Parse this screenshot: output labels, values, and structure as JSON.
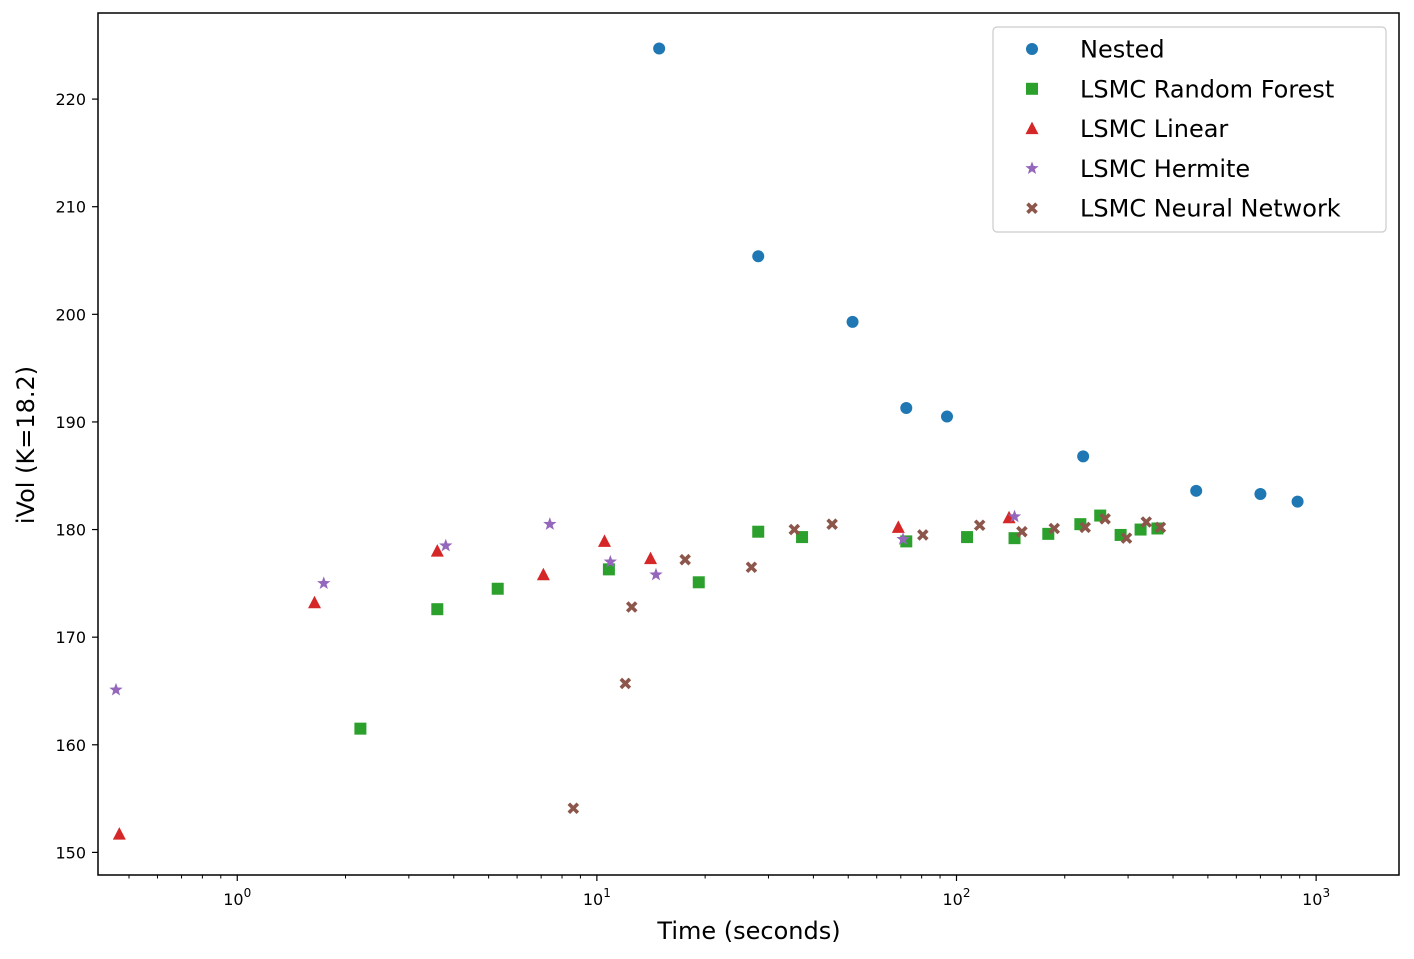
{
  "chart_data": {
    "type": "scatter",
    "title": "",
    "xlabel": "Time (seconds)",
    "ylabel": "iVol (K=18.2)",
    "xscale": "log",
    "xlim": [
      0.41,
      1700
    ],
    "ylim": [
      147.9,
      228.0
    ],
    "xticks": [
      {
        "value": 1,
        "base": "10",
        "exp": "0"
      },
      {
        "value": 10,
        "base": "10",
        "exp": "1"
      },
      {
        "value": 100,
        "base": "10",
        "exp": "2"
      },
      {
        "value": 1000,
        "base": "10",
        "exp": "3"
      }
    ],
    "yticks": [
      150,
      160,
      170,
      180,
      190,
      200,
      210,
      220
    ],
    "grid": false,
    "legend_position": "top-right",
    "series": [
      {
        "name": "Nested",
        "marker": "circle",
        "color": "#1f77b4",
        "points": [
          [
            14.9,
            224.7
          ],
          [
            28.1,
            205.4
          ],
          [
            51.4,
            199.3
          ],
          [
            72.5,
            191.3
          ],
          [
            94.1,
            190.5
          ],
          [
            225,
            186.8
          ],
          [
            464,
            183.6
          ],
          [
            700,
            183.3
          ],
          [
            888,
            182.6
          ]
        ]
      },
      {
        "name": "LSMC Random Forest",
        "marker": "square",
        "color": "#2ca02c",
        "points": [
          [
            2.2,
            161.5
          ],
          [
            3.6,
            172.6
          ],
          [
            5.3,
            174.5
          ],
          [
            10.8,
            176.3
          ],
          [
            19.2,
            175.1
          ],
          [
            28.1,
            179.8
          ],
          [
            37.2,
            179.3
          ],
          [
            72.5,
            178.9
          ],
          [
            107,
            179.3
          ],
          [
            145,
            179.2
          ],
          [
            180,
            179.6
          ],
          [
            221,
            180.5
          ],
          [
            251,
            181.3
          ],
          [
            286,
            179.5
          ],
          [
            325,
            180.0
          ],
          [
            362,
            180.1
          ]
        ]
      },
      {
        "name": "LSMC Linear",
        "marker": "triangle",
        "color": "#d62728",
        "points": [
          [
            0.47,
            151.7
          ],
          [
            1.64,
            173.2
          ],
          [
            3.6,
            178.0
          ],
          [
            7.1,
            175.8
          ],
          [
            10.5,
            178.9
          ],
          [
            14.1,
            177.3
          ],
          [
            68.9,
            180.2
          ],
          [
            140,
            181.1
          ]
        ]
      },
      {
        "name": "LSMC Hermite",
        "marker": "star",
        "color": "#9467bd",
        "points": [
          [
            0.46,
            165.1
          ],
          [
            1.74,
            175.0
          ],
          [
            3.8,
            178.5
          ],
          [
            7.4,
            180.5
          ],
          [
            10.9,
            177.0
          ],
          [
            14.6,
            175.8
          ],
          [
            71.0,
            179.1
          ],
          [
            145,
            181.2
          ]
        ]
      },
      {
        "name": "LSMC Neural Network",
        "marker": "x",
        "color": "#8c564b",
        "points": [
          [
            8.6,
            154.1
          ],
          [
            12.0,
            165.7
          ],
          [
            12.5,
            172.8
          ],
          [
            17.6,
            177.2
          ],
          [
            26.9,
            176.5
          ],
          [
            35.4,
            180.0
          ],
          [
            45.1,
            180.5
          ],
          [
            80.6,
            179.5
          ],
          [
            116,
            180.4
          ],
          [
            152,
            179.8
          ],
          [
            187,
            180.1
          ],
          [
            228,
            180.2
          ],
          [
            259,
            181.0
          ],
          [
            297,
            179.2
          ],
          [
            337,
            180.7
          ],
          [
            369,
            180.2
          ]
        ]
      }
    ]
  }
}
